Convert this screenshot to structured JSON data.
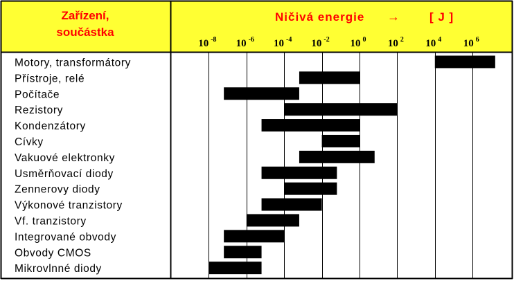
{
  "colors": {
    "header_bg": "#ffff33",
    "header_text": "#ff0000",
    "bar": "#000000",
    "border": "#000000",
    "background": "#ffffff"
  },
  "header": {
    "category_label_line1": "Zařízení,",
    "category_label_line2": "součástka",
    "value_label": "Ničivá energie",
    "arrow": "→",
    "unit": "[ J ]"
  },
  "chart_data": {
    "type": "bar",
    "orientation": "horizontal-range",
    "scale": "log10",
    "xlabel": "Ničivá energie → [ J ]",
    "ylabel": "Zařízení, součástka",
    "xlim_exponent": [
      -9,
      9
    ],
    "tick_exponents": [
      -8,
      -6,
      -4,
      -2,
      0,
      2,
      4,
      6
    ],
    "tick_labels": [
      {
        "base": "10",
        "exp": "-8"
      },
      {
        "base": "10",
        "exp": "-6"
      },
      {
        "base": "10",
        "exp": "-4"
      },
      {
        "base": "10",
        "exp": "-2"
      },
      {
        "base": "10",
        "exp": "0"
      },
      {
        "base": "10",
        "exp": "2"
      },
      {
        "base": "10",
        "exp": "4"
      },
      {
        "base": "10",
        "exp": "6"
      }
    ],
    "grid": true,
    "categories": [
      "Motory, transformátory",
      "Přístroje, relé",
      "Počítače",
      "Rezistory",
      "Kondenzátory",
      "Cívky",
      "Vakuové elektronky",
      "Usměrňovací diody",
      "Zennerovy diody",
      "Výkonové tranzistory",
      "Vf. tranzistory",
      "Integrované obvody",
      "Obvody CMOS",
      "Mikrovlnné diody"
    ],
    "ranges_exponent": [
      [
        4,
        7.2
      ],
      [
        -3.2,
        0
      ],
      [
        -7.2,
        -3.2
      ],
      [
        -4,
        2
      ],
      [
        -5.2,
        0
      ],
      [
        -2,
        0
      ],
      [
        -3.2,
        0.8
      ],
      [
        -5.2,
        -1.2
      ],
      [
        -4,
        -1.2
      ],
      [
        -5.2,
        -2
      ],
      [
        -6,
        -3.2
      ],
      [
        -7.2,
        -4
      ],
      [
        -7.2,
        -5.2
      ],
      [
        -8,
        -5.2
      ]
    ]
  }
}
